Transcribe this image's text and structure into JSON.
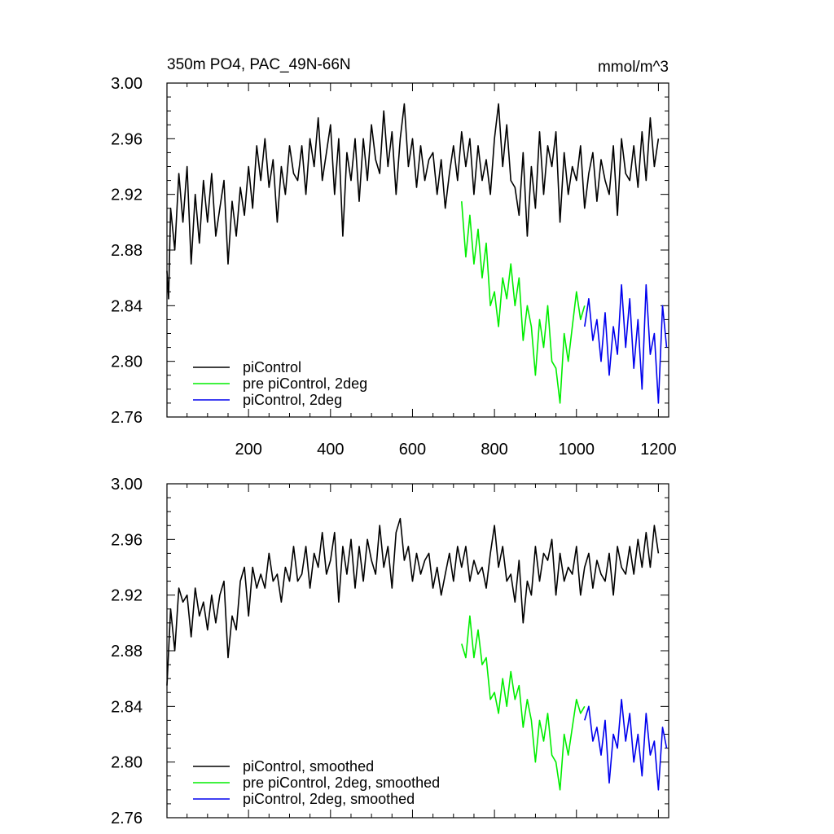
{
  "chart_data": [
    {
      "type": "line",
      "title": "350m PO4, PAC_49N-66N",
      "units": "mmol/m^3",
      "xlim": [
        1,
        1225
      ],
      "ylim": [
        2.76,
        3.0
      ],
      "x_ticks": [
        200,
        400,
        600,
        800,
        1000,
        1200
      ],
      "y_ticks": [
        "2.76",
        "2.80",
        "2.84",
        "2.88",
        "2.92",
        "2.96",
        "3.00"
      ],
      "legend": [
        "piControl",
        "pre piControl, 2deg",
        "piControl, 2deg"
      ],
      "legend_position": "bottom-left",
      "series": [
        {
          "name": "piControl",
          "color": "#000000",
          "x": [
            1,
            5,
            10,
            20,
            30,
            40,
            50,
            60,
            70,
            80,
            90,
            100,
            110,
            120,
            130,
            140,
            150,
            160,
            170,
            180,
            190,
            200,
            210,
            220,
            230,
            240,
            250,
            260,
            270,
            280,
            290,
            300,
            310,
            320,
            330,
            340,
            350,
            360,
            370,
            380,
            390,
            400,
            410,
            420,
            430,
            440,
            450,
            460,
            470,
            480,
            490,
            500,
            510,
            520,
            530,
            540,
            550,
            560,
            570,
            580,
            590,
            600,
            610,
            620,
            630,
            640,
            650,
            660,
            670,
            680,
            690,
            700,
            710,
            720,
            730,
            740,
            750,
            760,
            770,
            780,
            790,
            800,
            810,
            820,
            830,
            840,
            850,
            860,
            870,
            880,
            890,
            900,
            910,
            920,
            930,
            940,
            950,
            960,
            970,
            980,
            990,
            1000,
            1010,
            1020,
            1030,
            1040,
            1050,
            1060,
            1070,
            1080,
            1090,
            1100,
            1110,
            1120,
            1130,
            1140,
            1150,
            1160,
            1170,
            1180,
            1190,
            1200
          ],
          "values": [
            2.865,
            2.845,
            2.91,
            2.88,
            2.935,
            2.9,
            2.94,
            2.87,
            2.92,
            2.885,
            2.93,
            2.9,
            2.935,
            2.89,
            2.91,
            2.93,
            2.87,
            2.915,
            2.89,
            2.925,
            2.905,
            2.94,
            2.91,
            2.955,
            2.93,
            2.96,
            2.925,
            2.945,
            2.9,
            2.94,
            2.92,
            2.955,
            2.935,
            2.93,
            2.955,
            2.92,
            2.96,
            2.94,
            2.975,
            2.93,
            2.95,
            2.97,
            2.92,
            2.96,
            2.89,
            2.95,
            2.93,
            2.96,
            2.915,
            2.96,
            2.93,
            2.97,
            2.945,
            2.935,
            2.98,
            2.94,
            2.965,
            2.92,
            2.96,
            2.985,
            2.94,
            2.96,
            2.925,
            2.955,
            2.93,
            2.945,
            2.95,
            2.92,
            2.945,
            2.91,
            2.935,
            2.955,
            2.93,
            2.965,
            2.94,
            2.96,
            2.92,
            2.955,
            2.93,
            2.945,
            2.92,
            2.96,
            2.985,
            2.94,
            2.97,
            2.93,
            2.925,
            2.905,
            2.95,
            2.89,
            2.94,
            2.91,
            2.965,
            2.92,
            2.955,
            2.94,
            2.965,
            2.9,
            2.95,
            2.92,
            2.94,
            2.93,
            2.955,
            2.91,
            2.935,
            2.95,
            2.915,
            2.945,
            2.93,
            2.92,
            2.955,
            2.905,
            2.96,
            2.935,
            2.93,
            2.955,
            2.925,
            2.965,
            2.93,
            2.975,
            2.94,
            2.96
          ]
        },
        {
          "name": "pre piControl, 2deg",
          "color": "#00ee00",
          "x": [
            720,
            730,
            740,
            750,
            760,
            770,
            780,
            790,
            800,
            810,
            820,
            830,
            840,
            850,
            860,
            870,
            880,
            890,
            900,
            910,
            920,
            930,
            940,
            950,
            960,
            970,
            980,
            990,
            1000,
            1010,
            1020
          ],
          "values": [
            2.915,
            2.875,
            2.905,
            2.87,
            2.895,
            2.86,
            2.885,
            2.84,
            2.85,
            2.825,
            2.86,
            2.845,
            2.87,
            2.84,
            2.86,
            2.815,
            2.84,
            2.825,
            2.79,
            2.83,
            2.81,
            2.84,
            2.8,
            2.795,
            2.77,
            2.82,
            2.8,
            2.825,
            2.85,
            2.83,
            2.84
          ]
        },
        {
          "name": "piControl, 2deg",
          "color": "#0000ee",
          "x": [
            1020,
            1030,
            1040,
            1050,
            1060,
            1070,
            1080,
            1090,
            1100,
            1110,
            1120,
            1130,
            1140,
            1150,
            1160,
            1170,
            1180,
            1190,
            1200,
            1210,
            1220
          ],
          "values": [
            2.825,
            2.845,
            2.815,
            2.83,
            2.8,
            2.835,
            2.79,
            2.825,
            2.805,
            2.855,
            2.81,
            2.845,
            2.795,
            2.83,
            2.78,
            2.855,
            2.805,
            2.82,
            2.77,
            2.84,
            2.81
          ]
        }
      ]
    },
    {
      "type": "line",
      "xlim": [
        1,
        1225
      ],
      "ylim": [
        2.76,
        3.0
      ],
      "y_ticks": [
        "2.76",
        "2.80",
        "2.84",
        "2.88",
        "2.92",
        "2.96",
        "3.00"
      ],
      "legend": [
        "piControl, smoothed",
        "pre piControl, 2deg, smoothed",
        "piControl, 2deg, smoothed"
      ],
      "legend_position": "bottom-left",
      "series": [
        {
          "name": "piControl, smoothed",
          "color": "#000000",
          "x": [
            1,
            10,
            20,
            30,
            40,
            50,
            60,
            70,
            80,
            90,
            100,
            110,
            120,
            130,
            140,
            150,
            160,
            170,
            180,
            190,
            200,
            210,
            220,
            230,
            240,
            250,
            260,
            270,
            280,
            290,
            300,
            310,
            320,
            330,
            340,
            350,
            360,
            370,
            380,
            390,
            400,
            410,
            420,
            430,
            440,
            450,
            460,
            470,
            480,
            490,
            500,
            510,
            520,
            530,
            540,
            550,
            560,
            570,
            580,
            590,
            600,
            610,
            620,
            630,
            640,
            650,
            660,
            670,
            680,
            690,
            700,
            710,
            720,
            730,
            740,
            750,
            760,
            770,
            780,
            790,
            800,
            810,
            820,
            830,
            840,
            850,
            860,
            870,
            880,
            890,
            900,
            910,
            920,
            930,
            940,
            950,
            960,
            970,
            980,
            990,
            1000,
            1010,
            1020,
            1030,
            1040,
            1050,
            1060,
            1070,
            1080,
            1090,
            1100,
            1110,
            1120,
            1130,
            1140,
            1150,
            1160,
            1170,
            1180,
            1190,
            1200
          ],
          "values": [
            2.855,
            2.91,
            2.88,
            2.925,
            2.915,
            2.92,
            2.89,
            2.925,
            2.905,
            2.915,
            2.895,
            2.92,
            2.9,
            2.92,
            2.93,
            2.875,
            2.905,
            2.895,
            2.93,
            2.94,
            2.905,
            2.94,
            2.925,
            2.935,
            2.925,
            2.95,
            2.93,
            2.935,
            2.915,
            2.94,
            2.93,
            2.955,
            2.93,
            2.935,
            2.955,
            2.925,
            2.95,
            2.94,
            2.965,
            2.935,
            2.945,
            2.965,
            2.915,
            2.955,
            2.935,
            2.96,
            2.925,
            2.955,
            2.93,
            2.96,
            2.945,
            2.935,
            2.97,
            2.94,
            2.955,
            2.925,
            2.965,
            2.975,
            2.945,
            2.955,
            2.93,
            2.95,
            2.935,
            2.945,
            2.95,
            2.925,
            2.94,
            2.92,
            2.935,
            2.95,
            2.93,
            2.955,
            2.94,
            2.955,
            2.93,
            2.945,
            2.935,
            2.94,
            2.925,
            2.95,
            2.97,
            2.94,
            2.955,
            2.93,
            2.935,
            2.915,
            2.945,
            2.9,
            2.93,
            2.92,
            2.955,
            2.93,
            2.95,
            2.945,
            2.96,
            2.92,
            2.95,
            2.93,
            2.94,
            2.935,
            2.955,
            2.92,
            2.94,
            2.95,
            2.925,
            2.945,
            2.935,
            2.93,
            2.95,
            2.92,
            2.955,
            2.94,
            2.935,
            2.955,
            2.935,
            2.96,
            2.94,
            2.965,
            2.94,
            2.97,
            2.95
          ]
        },
        {
          "name": "pre piControl, 2deg, smoothed",
          "color": "#00ee00",
          "x": [
            720,
            730,
            740,
            750,
            760,
            770,
            780,
            790,
            800,
            810,
            820,
            830,
            840,
            850,
            860,
            870,
            880,
            890,
            900,
            910,
            920,
            930,
            940,
            950,
            960,
            970,
            980,
            990,
            1000,
            1010,
            1020
          ],
          "values": [
            2.885,
            2.875,
            2.905,
            2.875,
            2.895,
            2.87,
            2.875,
            2.845,
            2.85,
            2.835,
            2.86,
            2.84,
            2.865,
            2.845,
            2.855,
            2.825,
            2.845,
            2.83,
            2.8,
            2.83,
            2.815,
            2.835,
            2.805,
            2.8,
            2.78,
            2.82,
            2.805,
            2.825,
            2.845,
            2.835,
            2.84
          ]
        },
        {
          "name": "piControl, 2deg, smoothed",
          "color": "#0000ee",
          "x": [
            1020,
            1030,
            1040,
            1050,
            1060,
            1070,
            1080,
            1090,
            1100,
            1110,
            1120,
            1130,
            1140,
            1150,
            1160,
            1170,
            1180,
            1190,
            1200,
            1210,
            1220
          ],
          "values": [
            2.83,
            2.84,
            2.815,
            2.825,
            2.805,
            2.83,
            2.785,
            2.82,
            2.81,
            2.845,
            2.815,
            2.835,
            2.8,
            2.82,
            2.79,
            2.835,
            2.805,
            2.815,
            2.78,
            2.825,
            2.81
          ]
        }
      ]
    }
  ]
}
